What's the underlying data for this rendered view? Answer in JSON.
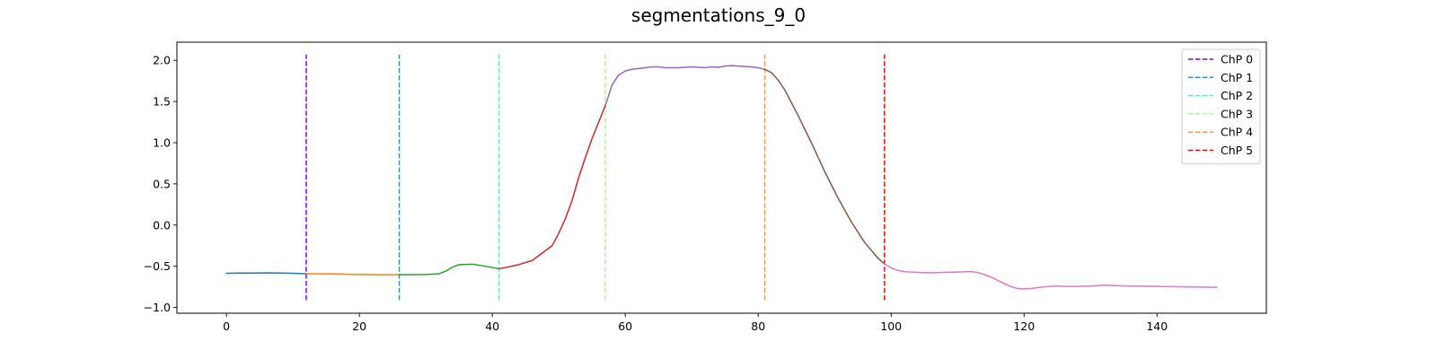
{
  "chart_data": {
    "type": "line",
    "title": "segmentations_9_0",
    "xlabel": "",
    "ylabel": "",
    "xlim": [
      -7.45,
      156.45
    ],
    "ylim": [
      -1.07,
      2.22
    ],
    "xticks": [
      0,
      20,
      40,
      60,
      80,
      100,
      120,
      140
    ],
    "yticks": [
      -1.0,
      -0.5,
      0.0,
      0.5,
      1.0,
      1.5,
      2.0
    ],
    "ytick_labels": [
      "−1.0",
      "−0.5",
      "0.0",
      "0.5",
      "1.0",
      "1.5",
      "2.0"
    ],
    "grid": false,
    "legend_position": "top-right",
    "changepoints": [
      {
        "name": "ChP 0",
        "x": 12,
        "color": "#8000ff"
      },
      {
        "name": "ChP 1",
        "x": 26,
        "color": "#1996f3"
      },
      {
        "name": "ChP 2",
        "x": 41,
        "color": "#4df3ce"
      },
      {
        "name": "ChP 3",
        "x": 57,
        "color": "#b2f396"
      },
      {
        "name": "ChP 4",
        "x": 81,
        "color": "#ff964f"
      },
      {
        "name": "ChP 5",
        "x": 99,
        "color": "#ff0000"
      }
    ],
    "changepoint_ymin": -0.91,
    "changepoint_ymax": 2.07,
    "segments": [
      {
        "color": "#1f77b4",
        "x": [
          0,
          2,
          4,
          6,
          8,
          10,
          12
        ],
        "y": [
          -0.585,
          -0.583,
          -0.582,
          -0.58,
          -0.582,
          -0.585,
          -0.59
        ]
      },
      {
        "color": "#ff7f0e",
        "x": [
          12,
          14,
          16,
          18,
          20,
          22,
          24,
          26
        ],
        "y": [
          -0.59,
          -0.592,
          -0.594,
          -0.597,
          -0.6,
          -0.602,
          -0.603,
          -0.603
        ]
      },
      {
        "color": "#2ca02c",
        "x": [
          26,
          28,
          30,
          32,
          33,
          34,
          35,
          37,
          39,
          41
        ],
        "y": [
          -0.603,
          -0.602,
          -0.6,
          -0.59,
          -0.56,
          -0.51,
          -0.48,
          -0.475,
          -0.5,
          -0.53
        ]
      },
      {
        "color": "#d62728",
        "x": [
          41,
          42,
          44,
          46,
          47,
          49,
          50,
          51,
          52,
          53,
          54,
          55,
          56,
          57
        ],
        "y": [
          -0.53,
          -0.515,
          -0.48,
          -0.43,
          -0.37,
          -0.25,
          -0.1,
          0.08,
          0.3,
          0.58,
          0.82,
          1.05,
          1.25,
          1.45
        ]
      },
      {
        "color": "#9467bd",
        "x": [
          57,
          58,
          59,
          60,
          61,
          62,
          63,
          64,
          65,
          66,
          68,
          70,
          72,
          73,
          74,
          75,
          76,
          77,
          78,
          79,
          80,
          81
        ],
        "y": [
          1.45,
          1.7,
          1.82,
          1.87,
          1.89,
          1.9,
          1.91,
          1.92,
          1.92,
          1.91,
          1.91,
          1.92,
          1.91,
          1.92,
          1.915,
          1.93,
          1.935,
          1.93,
          1.925,
          1.92,
          1.91,
          1.89
        ]
      },
      {
        "color": "#8c564b",
        "x": [
          81,
          82,
          83,
          84,
          86,
          88,
          90,
          92,
          94,
          96,
          98,
          99
        ],
        "y": [
          1.89,
          1.85,
          1.76,
          1.64,
          1.33,
          1.0,
          0.65,
          0.33,
          0.04,
          -0.21,
          -0.4,
          -0.47
        ]
      },
      {
        "color": "#e377c2",
        "x": [
          99,
          100,
          101,
          102,
          104,
          106,
          108,
          110,
          112,
          113,
          114,
          115,
          116,
          117,
          118,
          119,
          120,
          121,
          122,
          123,
          124,
          125,
          126,
          128,
          130,
          132,
          134,
          136,
          140,
          144,
          149
        ],
        "y": [
          -0.47,
          -0.52,
          -0.55,
          -0.565,
          -0.575,
          -0.58,
          -0.575,
          -0.57,
          -0.565,
          -0.575,
          -0.6,
          -0.63,
          -0.67,
          -0.71,
          -0.745,
          -0.77,
          -0.775,
          -0.77,
          -0.76,
          -0.75,
          -0.745,
          -0.74,
          -0.745,
          -0.745,
          -0.74,
          -0.73,
          -0.735,
          -0.74,
          -0.745,
          -0.75,
          -0.755
        ]
      }
    ]
  }
}
